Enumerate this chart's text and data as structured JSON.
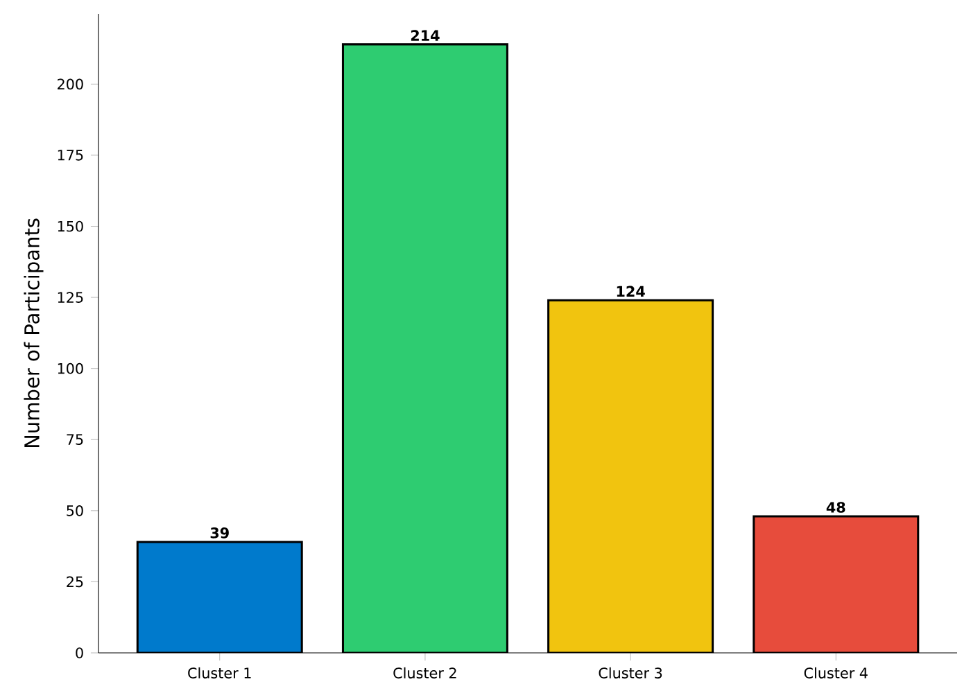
{
  "chart_data": {
    "type": "bar",
    "ylabel": "Number of Participants",
    "categories": [
      "Cluster 1",
      "Cluster 2",
      "Cluster 3",
      "Cluster 4"
    ],
    "values": [
      39,
      214,
      124,
      48
    ],
    "colors": [
      "#007acc",
      "#2ecc71",
      "#f1c40f",
      "#e74c3c"
    ],
    "ylim": [
      0,
      224.7
    ],
    "yticks": [
      0,
      25,
      50,
      75,
      100,
      125,
      150,
      175,
      200
    ],
    "data_labels": true
  }
}
